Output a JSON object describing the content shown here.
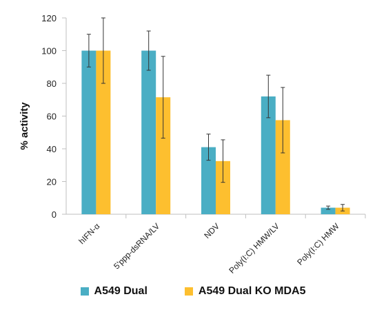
{
  "chart_data": {
    "type": "bar",
    "ylabel": "% activity",
    "xlabel": "",
    "ylim": [
      0,
      120
    ],
    "yticks": [
      "0",
      "20",
      "40",
      "60",
      "80",
      "100",
      "120"
    ],
    "grid": false,
    "legend_position": "bottom",
    "categories": [
      "hIFN-α",
      "5'ppp-dsRNA/LV",
      "NDV",
      "Poly(I:C) HMW/LV",
      "Poly(I:C) HMW"
    ],
    "series": [
      {
        "name": "A549 Dual",
        "color": "#4aaec4",
        "values": [
          100,
          100,
          41,
          72,
          4
        ],
        "errors": [
          10,
          12,
          8,
          13,
          1
        ]
      },
      {
        "name": "A549 Dual KO MDA5",
        "color": "#fdbf2f",
        "values": [
          100,
          71.5,
          32.5,
          57.5,
          4
        ],
        "errors": [
          20,
          25,
          13,
          20,
          2
        ]
      }
    ]
  }
}
